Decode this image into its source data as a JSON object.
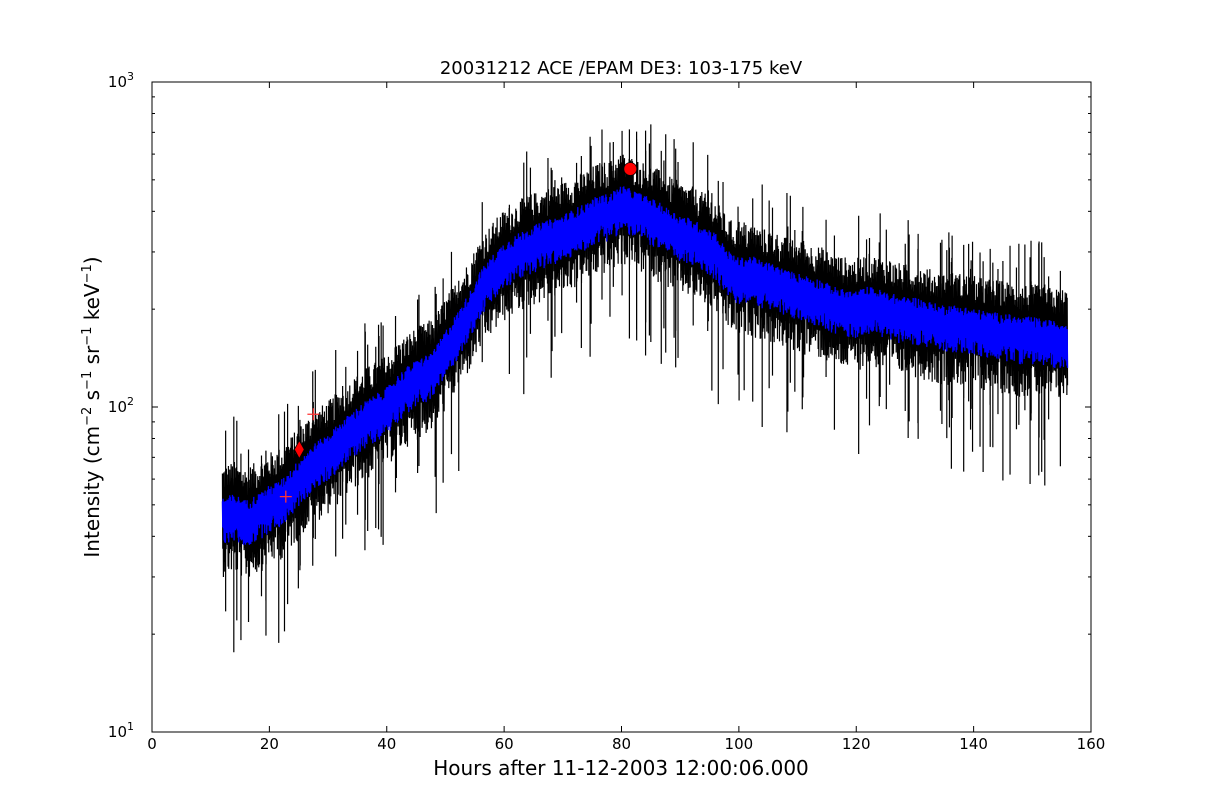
{
  "chart_data": {
    "type": "line",
    "title": "20031212 ACE /EPAM DE3: 103-175 keV",
    "xlabel": "Hours after 11-12-2003 12:00:06.000",
    "ylabel": {
      "prefix": "Intensity (cm",
      "exp1": "−2",
      "part2": " s",
      "exp2": "−1",
      "part3": " sr",
      "exp3": "−1",
      "part4": " keV",
      "exp4": "−1",
      "suffix": ")"
    },
    "xlim": [
      0,
      160
    ],
    "ylim": [
      10,
      1000
    ],
    "yscale": "log",
    "grid": false,
    "x_ticks": [
      0,
      20,
      40,
      60,
      80,
      100,
      120,
      140,
      160
    ],
    "x_tick_labels": [
      "0",
      "20",
      "40",
      "60",
      "80",
      "100",
      "120",
      "140",
      "160"
    ],
    "y_ticks": [
      10,
      100,
      1000
    ],
    "y_tick_labels": [
      {
        "base": "10",
        "exp": "1"
      },
      {
        "base": "10",
        "exp": "2"
      },
      {
        "base": "10",
        "exp": "3"
      }
    ],
    "series": [
      {
        "style": "raw data with noise band",
        "color": "#000000",
        "x": [
          12,
          14,
          16,
          18,
          20,
          22,
          24,
          26,
          28,
          30,
          32,
          34,
          36,
          38,
          40,
          42,
          44,
          46,
          48,
          50,
          52,
          54,
          56,
          58,
          60,
          62,
          64,
          66,
          68,
          70,
          72,
          74,
          76,
          78,
          80,
          82,
          84,
          86,
          88,
          90,
          92,
          94,
          96,
          98,
          100,
          102,
          104,
          106,
          108,
          110,
          112,
          114,
          116,
          118,
          120,
          122,
          124,
          126,
          128,
          130,
          132,
          134,
          136,
          138,
          140,
          142,
          144,
          146,
          148,
          150,
          152,
          154,
          156
        ],
        "y": [
          46,
          47,
          45,
          47,
          50,
          52,
          57,
          63,
          68,
          72,
          78,
          84,
          90,
          95,
          100,
          110,
          118,
          124,
          130,
          150,
          170,
          195,
          230,
          255,
          280,
          295,
          310,
          320,
          330,
          340,
          355,
          370,
          390,
          395,
          420,
          405,
          390,
          375,
          355,
          340,
          330,
          315,
          300,
          265,
          250,
          255,
          245,
          240,
          230,
          225,
          220,
          215,
          205,
          200,
          198,
          205,
          200,
          195,
          190,
          190,
          185,
          180,
          180,
          178,
          175,
          172,
          170,
          168,
          165,
          165,
          162,
          160,
          160
        ],
        "upper_factor": 1.45,
        "lower_factor": 0.65
      },
      {
        "style": "smoothed line",
        "color": "#0000ff",
        "x": [
          12,
          14,
          16,
          18,
          20,
          22,
          24,
          26,
          28,
          30,
          32,
          34,
          36,
          38,
          40,
          42,
          44,
          46,
          48,
          50,
          52,
          54,
          56,
          58,
          60,
          62,
          64,
          66,
          68,
          70,
          72,
          74,
          76,
          78,
          80,
          82,
          84,
          86,
          88,
          90,
          92,
          94,
          96,
          98,
          100,
          102,
          104,
          106,
          108,
          110,
          112,
          114,
          116,
          118,
          120,
          122,
          124,
          126,
          128,
          130,
          132,
          134,
          136,
          138,
          140,
          142,
          144,
          146,
          148,
          150,
          152,
          154,
          156
        ],
        "y": [
          46,
          47,
          45,
          47,
          50,
          52,
          57,
          63,
          68,
          72,
          78,
          84,
          90,
          95,
          100,
          110,
          118,
          124,
          130,
          150,
          170,
          195,
          230,
          255,
          280,
          295,
          310,
          320,
          330,
          340,
          355,
          370,
          390,
          395,
          420,
          405,
          390,
          375,
          355,
          340,
          330,
          315,
          300,
          265,
          250,
          255,
          245,
          240,
          230,
          225,
          220,
          215,
          205,
          200,
          198,
          205,
          200,
          195,
          190,
          190,
          185,
          180,
          180,
          178,
          175,
          172,
          170,
          168,
          165,
          165,
          162,
          160,
          160
        ],
        "upper_factor": 1.15,
        "lower_factor": 0.82
      }
    ],
    "markers": [
      {
        "shape": "plus",
        "x": 22.8,
        "y": 53,
        "color": "#ff3333"
      },
      {
        "shape": "plus",
        "x": 27.5,
        "y": 95,
        "color": "#ff3333"
      },
      {
        "shape": "diamond",
        "x": 25.1,
        "y": 74,
        "color": "#ff0000"
      },
      {
        "shape": "circle",
        "x": 81.5,
        "y": 540,
        "color": "#ff0000"
      }
    ]
  }
}
